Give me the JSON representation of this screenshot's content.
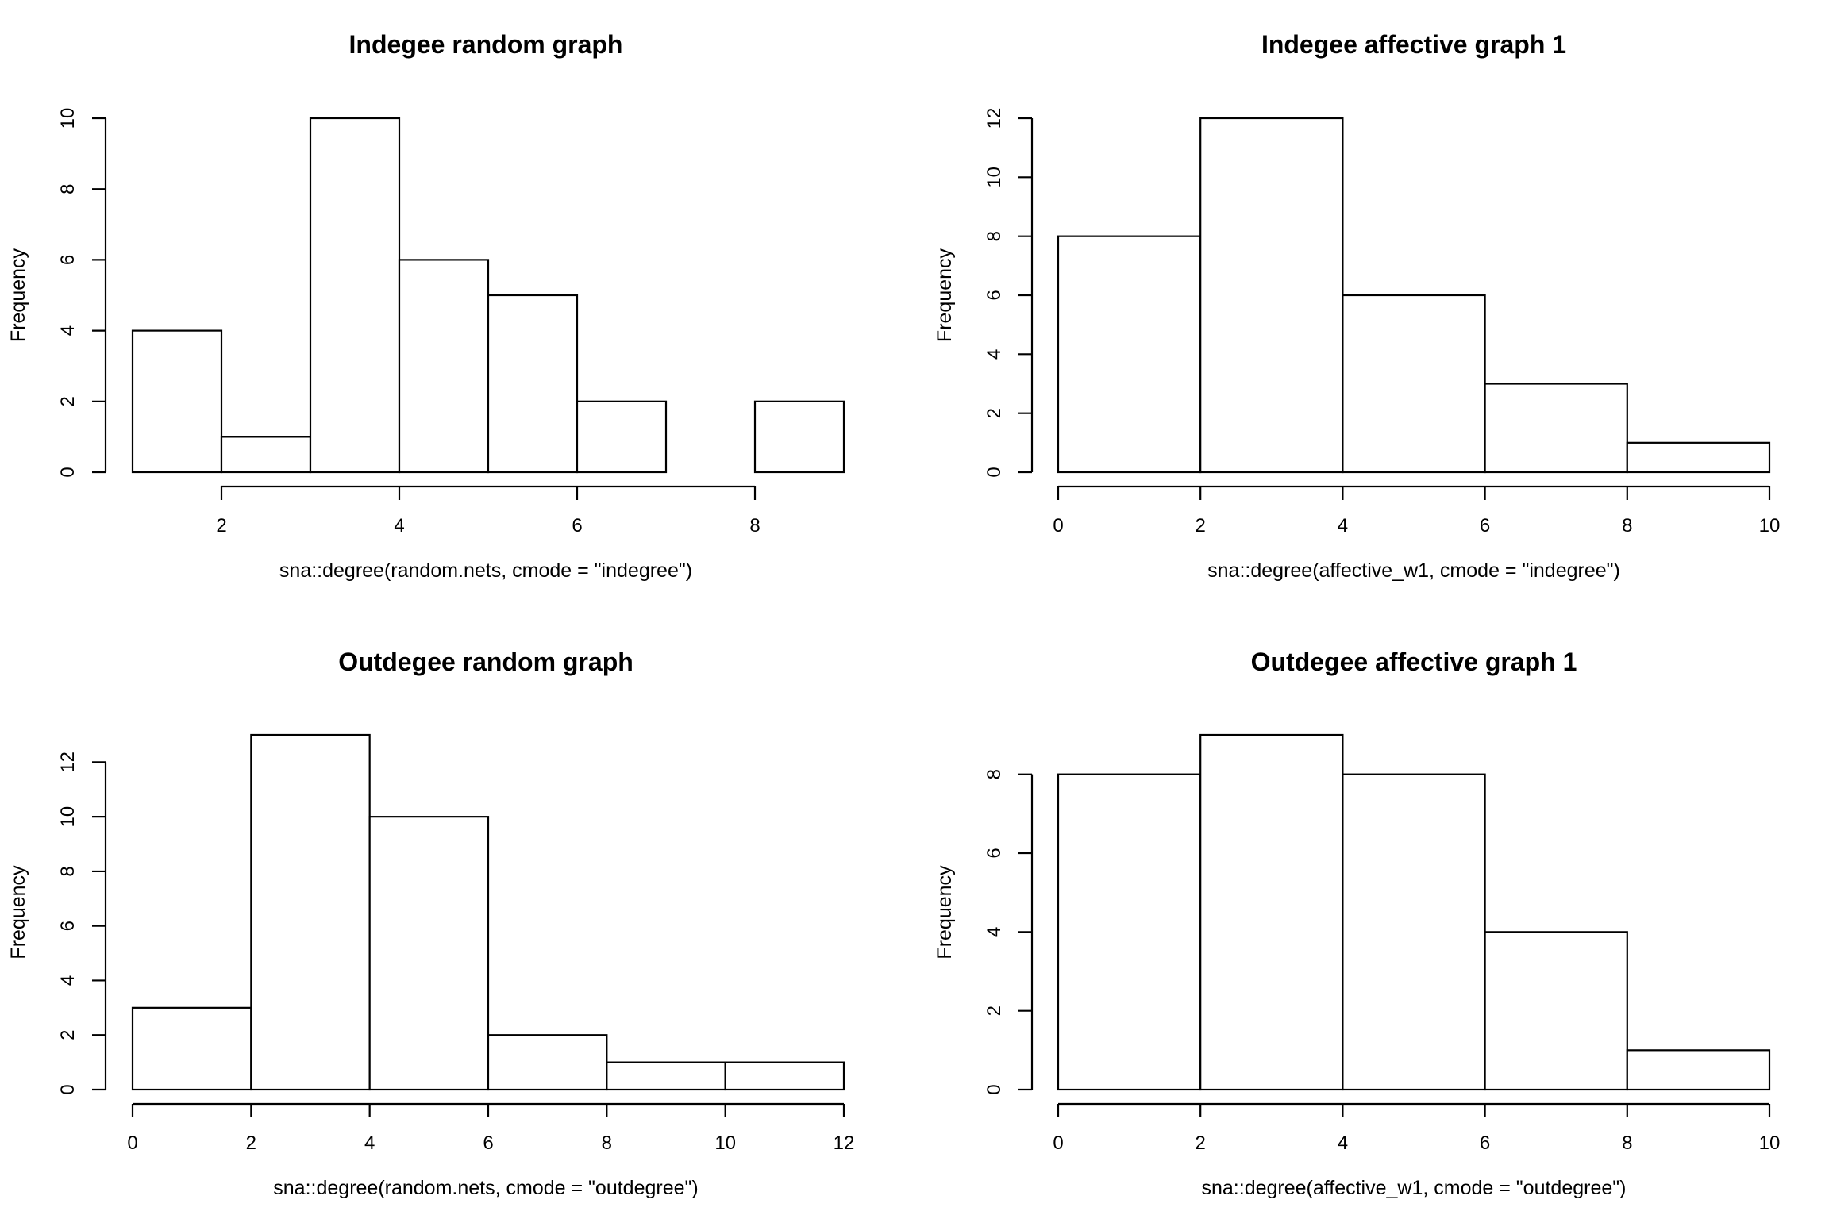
{
  "colors": {
    "background": "#ffffff",
    "bar_fill": "#ffffff",
    "stroke": "#000000"
  },
  "chart_data": [
    {
      "type": "bar",
      "title": "Indegee random graph",
      "xlabel": "sna::degree(random.nets, cmode = \"indegree\")",
      "ylabel": "Frequency",
      "bin_edges": [
        1,
        2,
        3,
        4,
        5,
        6,
        7,
        8,
        9
      ],
      "values": [
        4,
        1,
        10,
        6,
        5,
        2,
        0,
        2
      ],
      "xlim": [
        1,
        9
      ],
      "ylim": [
        0,
        10
      ],
      "x_ticks": [
        2,
        4,
        6,
        8
      ],
      "y_ticks": [
        0,
        2,
        4,
        6,
        8,
        10
      ],
      "grid": false,
      "legend": "none"
    },
    {
      "type": "bar",
      "title": "Indegee affective graph 1",
      "xlabel": "sna::degree(affective_w1, cmode = \"indegree\")",
      "ylabel": "Frequency",
      "bin_edges": [
        0,
        2,
        4,
        6,
        8,
        10
      ],
      "values": [
        8,
        12,
        6,
        3,
        1
      ],
      "xlim": [
        0,
        10
      ],
      "ylim": [
        0,
        12
      ],
      "x_ticks": [
        0,
        2,
        4,
        6,
        8,
        10
      ],
      "y_ticks": [
        0,
        2,
        4,
        6,
        8,
        10,
        12
      ],
      "grid": false,
      "legend": "none"
    },
    {
      "type": "bar",
      "title": "Outdegee random graph",
      "xlabel": "sna::degree(random.nets, cmode = \"outdegree\")",
      "ylabel": "Frequency",
      "bin_edges": [
        0,
        2,
        4,
        6,
        8,
        10,
        12
      ],
      "values": [
        3,
        13,
        10,
        2,
        1,
        1
      ],
      "xlim": [
        0,
        12
      ],
      "ylim": [
        0,
        13
      ],
      "x_ticks": [
        0,
        2,
        4,
        6,
        8,
        10,
        12
      ],
      "y_ticks": [
        0,
        2,
        4,
        6,
        8,
        10,
        12
      ],
      "grid": false,
      "legend": "none"
    },
    {
      "type": "bar",
      "title": "Outdegee affective graph 1",
      "xlabel": "sna::degree(affective_w1, cmode = \"outdegree\")",
      "ylabel": "Frequency",
      "bin_edges": [
        0,
        2,
        4,
        6,
        8,
        10
      ],
      "values": [
        8,
        9,
        8,
        4,
        1
      ],
      "xlim": [
        0,
        10
      ],
      "ylim": [
        0,
        9
      ],
      "x_ticks": [
        0,
        2,
        4,
        6,
        8,
        10
      ],
      "y_ticks": [
        0,
        2,
        4,
        6,
        8
      ],
      "grid": false,
      "legend": "none"
    }
  ]
}
